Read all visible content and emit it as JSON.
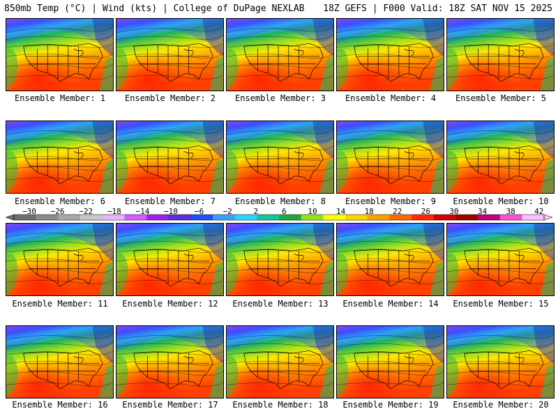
{
  "header": {
    "title_left": "850mb Temp (°C) | Wind (kts) | College of DuPage NEXLAB",
    "title_right": "18Z GEFS | F000 Valid: 18Z SAT NOV 15 2025"
  },
  "caption_prefix": "Ensemble Member: ",
  "members": [
    "1",
    "2",
    "3",
    "4",
    "5",
    "6",
    "7",
    "8",
    "9",
    "10",
    "11",
    "12",
    "13",
    "14",
    "15",
    "16",
    "17",
    "18",
    "19",
    "20"
  ],
  "colorbar": {
    "labels": [
      "−30",
      "−26",
      "−22",
      "−18",
      "−14",
      "−10",
      "−6",
      "−2",
      "2",
      "6",
      "10",
      "14",
      "18",
      "22",
      "26",
      "30",
      "34",
      "38",
      "42"
    ],
    "colors": [
      "#6f6f6f",
      "#8c8c8c",
      "#a8a8a8",
      "#c8c8c8",
      "#e8b4ff",
      "#d65cff",
      "#a020f0",
      "#5a2dde",
      "#1f4fff",
      "#3aa0ff",
      "#25d7ff",
      "#19c3a0",
      "#20a83a",
      "#8fe61a",
      "#ffff00",
      "#ffd200",
      "#ffa000",
      "#ff6a00",
      "#ff2a00",
      "#d80000",
      "#a00000",
      "#c0007a",
      "#ff4fd7",
      "#ffc0ff"
    ]
  }
}
